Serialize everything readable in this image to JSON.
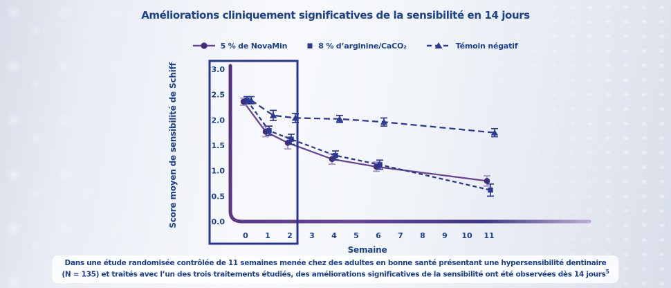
{
  "theme": {
    "title_color": "#1b418f",
    "navy": "#2b3a93",
    "purple_line": "#6a4596",
    "purple_marker": "#3f2d7a",
    "purple_error": "#a58cc9",
    "highlight_box": "#27358c",
    "background_edge": "#d8dde9",
    "background_center": "#f7f9fc"
  },
  "header": {
    "title": "Améliorations cliniquement significatives de la sensibilité en 14 jours"
  },
  "legend": [
    {
      "label": "5 % de NovaMin",
      "marker": "circle-on-solid-line"
    },
    {
      "label": "8 % d’arginine/CaCO₂",
      "marker": "square"
    },
    {
      "label": "Témoin négatif",
      "marker": "triangle-on-dashed-line"
    }
  ],
  "chart_data": {
    "type": "line",
    "title": "Améliorations cliniquement significatives de la sensibilité en 14 jours",
    "xlabel": "Semaine",
    "ylabel": "Score moyen de sensibilité de Schiff",
    "x_ticks": [
      0,
      1,
      2,
      3,
      4,
      5,
      6,
      7,
      8,
      9,
      10,
      11
    ],
    "y_ticks": [
      0.0,
      0.5,
      1.0,
      1.5,
      2.0,
      2.5,
      3.0
    ],
    "ylim": [
      0,
      3.0
    ],
    "grid": false,
    "legend_position": "top",
    "highlight_box": {
      "weeks": "0-2",
      "color": "#27358c",
      "note": "14-day window emphasis"
    },
    "series": [
      {
        "name": "5 % de NovaMin",
        "marker": "circle",
        "line_style": "solid",
        "line_color": "#6a4596",
        "marker_color": "#3f2d7a",
        "error_color": "#a58cc9",
        "dash": "",
        "x_offset": -3,
        "x": [
          0,
          1,
          2,
          4,
          6,
          11
        ],
        "y": [
          2.36,
          1.77,
          1.55,
          1.23,
          1.08,
          0.8
        ],
        "err": [
          0.07,
          0.1,
          0.12,
          0.1,
          0.09,
          0.1
        ]
      },
      {
        "name": "8 % d’arginine/CaCO₂",
        "marker": "square",
        "line_style": "dashed",
        "line_color": "#2b3a93",
        "marker_color": "#2b3a93",
        "error_color": "#2b3a93",
        "dash": "6 4",
        "x_offset": 2,
        "x": [
          0,
          1,
          2,
          4,
          6,
          11
        ],
        "y": [
          2.39,
          1.79,
          1.62,
          1.3,
          1.12,
          0.62
        ],
        "err": [
          0.07,
          0.09,
          0.1,
          0.09,
          0.09,
          0.12
        ]
      },
      {
        "name": "Témoin négatif",
        "marker": "triangle",
        "line_style": "dashed",
        "line_color": "#2b3a93",
        "marker_color": "#2b3a93",
        "error_color": "#2b3a93",
        "dash": "9 5",
        "x_offset": 8,
        "x": [
          0,
          1,
          2,
          4,
          6,
          11
        ],
        "y": [
          2.39,
          2.09,
          2.04,
          2.02,
          1.96,
          1.75
        ],
        "err": [
          0.07,
          0.1,
          0.09,
          0.07,
          0.08,
          0.08
        ]
      }
    ]
  },
  "footnote": {
    "line1": "Dans une étude randomisée contrôlée de 11 semaines menée chez des adultes en bonne santé présentant une hypersensibilité dentinaire",
    "line2": "(N = 135) et traités avec l’un des trois traitements étudiés, des améliorations significatives de la sensibilité ont été observées dès 14 jours",
    "superscript": "5"
  }
}
